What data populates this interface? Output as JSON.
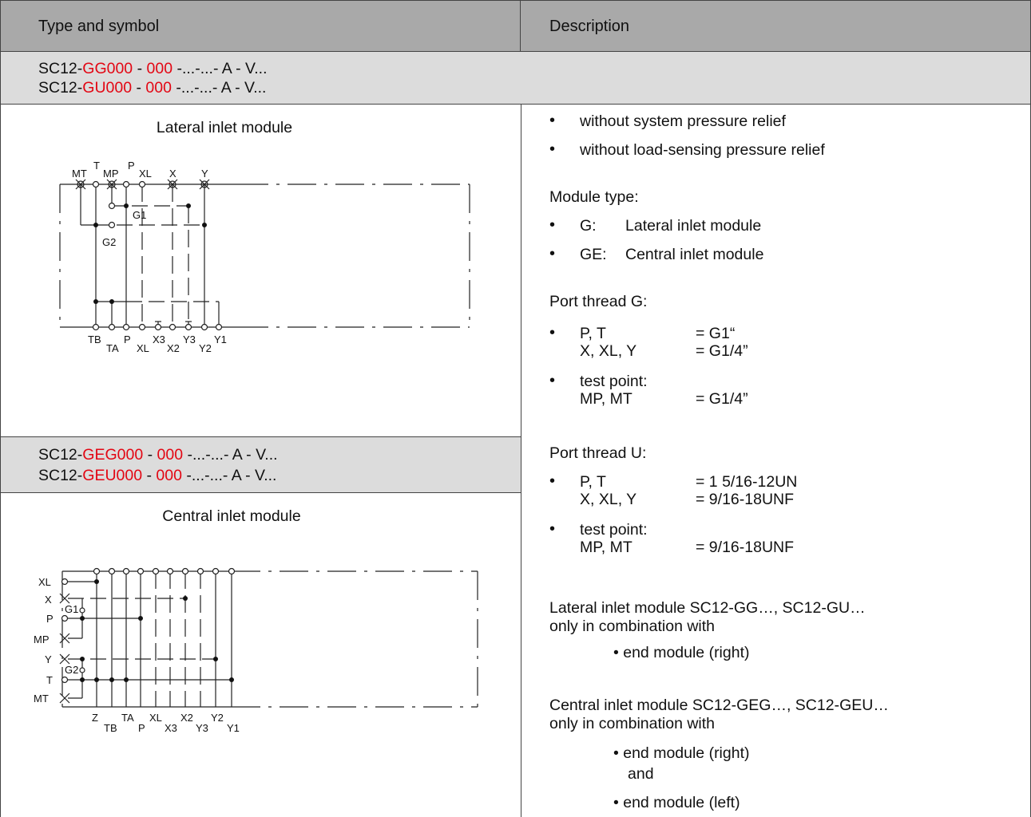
{
  "header": {
    "left": "Type and symbol",
    "right": "Description"
  },
  "codes_a": [
    {
      "pre": "SC12-",
      "r1": "GG000",
      "m1": " - ",
      "r2": "000",
      "post": " -...-...- A - V..."
    },
    {
      "pre": "SC12-",
      "r1": "GU000",
      "m1": " - ",
      "r2": "000",
      "post": " -...-...- A - V..."
    }
  ],
  "codes_b": [
    {
      "pre": "SC12-",
      "r1": "GEG000",
      "m1": " - ",
      "r2": "000",
      "post": " -...-...- A - V..."
    },
    {
      "pre": "SC12-",
      "r1": "GEU000",
      "m1": " - ",
      "r2": "000",
      "post": " -...-...- A - V..."
    }
  ],
  "lateral": {
    "title": "Lateral inlet module",
    "top_labels": [
      "MT",
      "T",
      "MP",
      "P",
      "XL",
      "X",
      "Y"
    ],
    "bottom_labels": [
      "TB",
      "TA",
      "P",
      "XL",
      "X3",
      "X2",
      "Y3",
      "Y2",
      "Y1"
    ],
    "inner_labels": [
      "G1",
      "G2"
    ]
  },
  "central": {
    "title": "Central inlet module",
    "left_labels": [
      "XL",
      "X",
      "P",
      "MP",
      "Y",
      "T",
      "MT"
    ],
    "bottom_labels": [
      "Z",
      "TB",
      "TA",
      "P",
      "XL",
      "X3",
      "X2",
      "Y3",
      "Y2",
      "Y1"
    ],
    "inner_labels": [
      "G1",
      "G2"
    ]
  },
  "desc": {
    "b1": "without system pressure relief",
    "b2": "without load-sensing pressure relief",
    "module_type": "Module type:",
    "mt1_k": "G:",
    "mt1_v": "Lateral inlet module",
    "mt2_k": "GE:",
    "mt2_v": "Central inlet module",
    "ptg": "Port thread G:",
    "ptg_1k": "P, T",
    "ptg_1v": "= G1“",
    "ptg_2k": "X, XL, Y",
    "ptg_2v": "= G1/4”",
    "ptg_3k": "test point:",
    "ptg_4k": "MP, MT",
    "ptg_4v": "= G1/4”",
    "ptu": "Port thread U:",
    "ptu_1k": "P, T",
    "ptu_1v": "= 1 5/16-12UN",
    "ptu_2k": "X, XL, Y",
    "ptu_2v": "= 9/16-18UNF",
    "ptu_3k": "test point:",
    "ptu_4k": "MP, MT",
    "ptu_4v": "= 9/16-18UNF",
    "lat_1": "Lateral inlet module SC12-GG…, SC12-GU…",
    "lat_2": "only in combination with",
    "lat_3": "• end module (right)",
    "cen_1": "Central inlet module  SC12-GEG…, SC12-GEU…",
    "cen_2": "only in combination with",
    "cen_3": "• end module (right)",
    "cen_4": "and",
    "cen_5": "• end module (left)"
  }
}
